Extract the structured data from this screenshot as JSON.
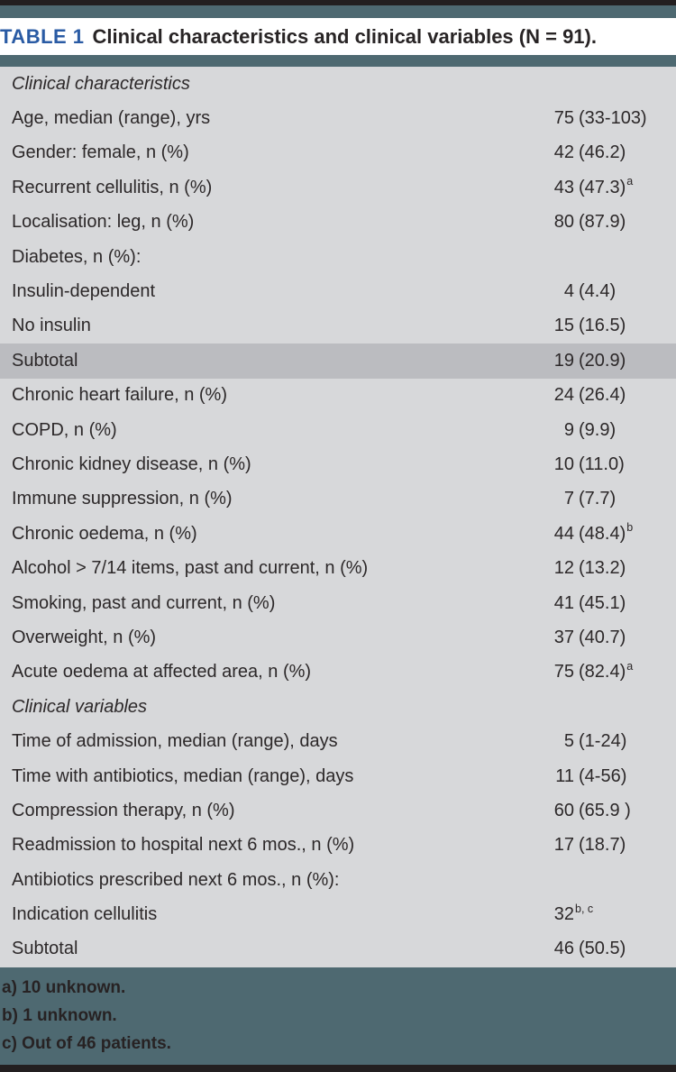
{
  "header": {
    "badge": "TABLE 1",
    "title": "Clinical characteristics and clinical variables (N = 91)."
  },
  "table": {
    "rows": [
      {
        "type": "section",
        "label": "Clinical characteristics"
      },
      {
        "type": "data",
        "label": "Age, median (range), yrs",
        "num": "75",
        "rest": "(33-103)"
      },
      {
        "type": "data",
        "label": "Gender: female, n (%)",
        "num": "42",
        "rest": "(46.2)"
      },
      {
        "type": "data",
        "label": "Recurrent cellulitis, n (%)",
        "num": "43",
        "rest": "(47.3)",
        "sup": "a"
      },
      {
        "type": "data",
        "label": "Localisation: leg, n (%)",
        "num": "80",
        "rest": "(87.9)"
      },
      {
        "type": "data",
        "label": "Diabetes, n (%):"
      },
      {
        "type": "data",
        "label": "Insulin-dependent",
        "num": "4",
        "rest": "(4.4)"
      },
      {
        "type": "data",
        "label": "No insulin",
        "num": "15",
        "rest": "(16.5)"
      },
      {
        "type": "data",
        "label": "Subtotal",
        "num": "19",
        "rest": "(20.9)",
        "highlight": true
      },
      {
        "type": "data",
        "label": "Chronic heart failure, n (%)",
        "num": "24",
        "rest": "(26.4)"
      },
      {
        "type": "data",
        "label": "COPD, n (%)",
        "num": "9",
        "rest": "(9.9)"
      },
      {
        "type": "data",
        "label": "Chronic kidney disease, n (%)",
        "num": "10",
        "rest": "(11.0)"
      },
      {
        "type": "data",
        "label": "Immune suppression, n (%)",
        "num": "7",
        "rest": "(7.7)"
      },
      {
        "type": "data",
        "label": "Chronic oedema, n (%)",
        "num": "44",
        "rest": "(48.4)",
        "sup": "b"
      },
      {
        "type": "data",
        "label": "Alcohol > 7/14 items, past and current, n (%)",
        "num": "12",
        "rest": "(13.2)"
      },
      {
        "type": "data",
        "label": "Smoking, past and current, n (%)",
        "num": "41",
        "rest": "(45.1)"
      },
      {
        "type": "data",
        "label": "Overweight, n (%)",
        "num": "37",
        "rest": "(40.7)"
      },
      {
        "type": "data",
        "label": "Acute oedema at affected area, n (%)",
        "num": "75",
        "rest": "(82.4)",
        "sup": "a"
      },
      {
        "type": "section",
        "label": "Clinical variables"
      },
      {
        "type": "data",
        "label": "Time of admission, median (range), days",
        "num": "5",
        "rest": "(1-24)"
      },
      {
        "type": "data",
        "label": "Time with antibiotics, median (range), days",
        "num": "11",
        "rest": "(4-56)"
      },
      {
        "type": "data",
        "label": "Compression therapy, n (%)",
        "num": "60",
        "rest": "(65.9 )"
      },
      {
        "type": "data",
        "label": "Readmission to hospital next 6 mos., n (%)",
        "num": "17",
        "rest": "(18.7)"
      },
      {
        "type": "data",
        "label": "Antibiotics prescribed next 6 mos., n (%):"
      },
      {
        "type": "data",
        "label": "Indication cellulitis",
        "num": "32",
        "sup": "b, c"
      },
      {
        "type": "data",
        "label": "Subtotal",
        "num": "46",
        "rest": "(50.5)"
      }
    ]
  },
  "footnotes": [
    "a) 10 unknown.",
    "b) 1 unknown.",
    "c) Out of 46 patients."
  ],
  "colors": {
    "page_teal": "#4e6971",
    "bar_black": "#231f20",
    "title_blue": "#2a5ba4",
    "row_gray": "#d7d8da",
    "highlight_gray": "#bbbcc0",
    "text_dark": "#2c2829"
  }
}
